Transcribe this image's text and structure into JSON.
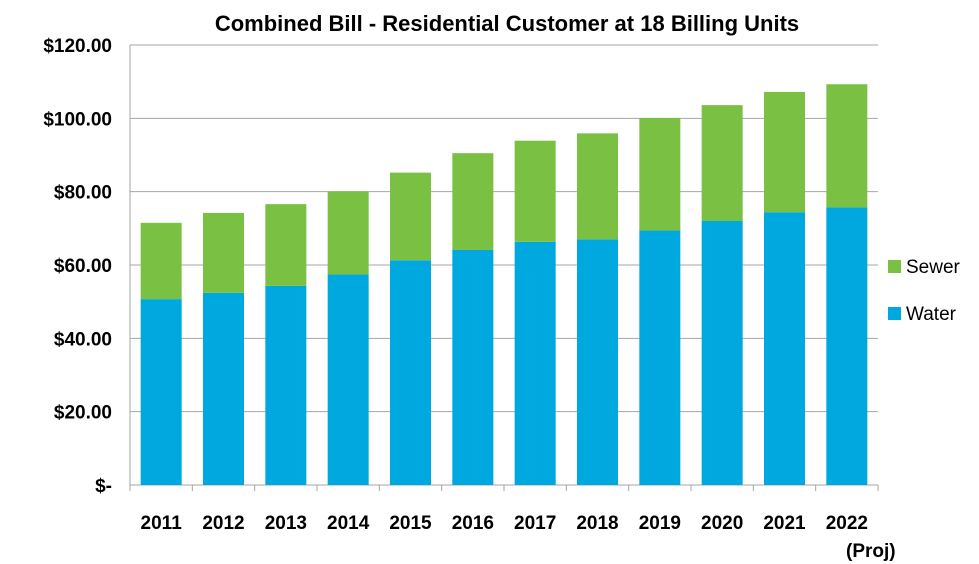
{
  "chart_data": {
    "type": "stacked_bar",
    "title": "Combined Bill - Residential Customer at 18 Billing Units",
    "categories": [
      "2011",
      "2012",
      "2013",
      "2014",
      "2015",
      "2016",
      "2017",
      "2018",
      "2019",
      "2020",
      "2021",
      "2022\n(Proj)"
    ],
    "series": [
      {
        "name": "Water",
        "color": "#00a8e0",
        "values": [
          50.7,
          52.4,
          54.3,
          57.4,
          61.3,
          64.1,
          66.3,
          67.0,
          69.4,
          72.0,
          74.4,
          75.7
        ]
      },
      {
        "name": "Sewer",
        "color": "#7ac143",
        "values": [
          20.8,
          21.8,
          22.3,
          22.7,
          23.9,
          26.4,
          27.6,
          28.9,
          30.7,
          31.6,
          32.8,
          33.6
        ]
      }
    ],
    "ylim": [
      0,
      120
    ],
    "yticks": [
      {
        "value": 0,
        "label": "$-"
      },
      {
        "value": 20,
        "label": "$20.00"
      },
      {
        "value": 40,
        "label": "$40.00"
      },
      {
        "value": 60,
        "label": "$60.00"
      },
      {
        "value": 80,
        "label": "$80.00"
      },
      {
        "value": 100,
        "label": "$100.00"
      },
      {
        "value": 120,
        "label": "$120.00"
      }
    ],
    "grid": true,
    "legend": "right"
  }
}
